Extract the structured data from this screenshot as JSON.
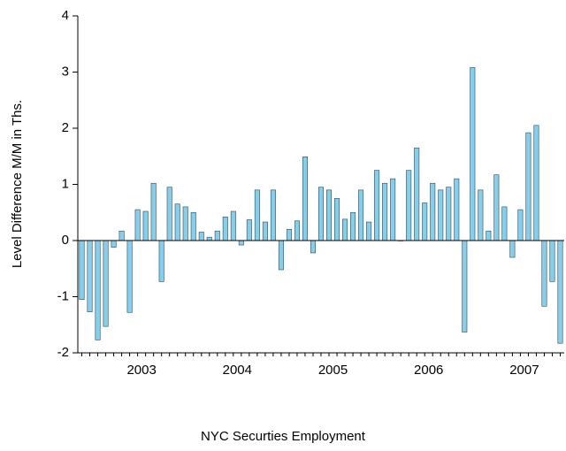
{
  "chart_data": {
    "type": "bar",
    "x_label": "NYC Securties Employment",
    "y_label": "Level Difference M/M in Ths.",
    "categories": [
      null,
      null,
      null,
      null,
      null,
      null,
      null,
      "2003",
      null,
      null,
      null,
      null,
      null,
      null,
      null,
      null,
      null,
      null,
      null,
      "2004",
      null,
      null,
      null,
      null,
      null,
      null,
      null,
      null,
      null,
      null,
      null,
      "2005",
      null,
      null,
      null,
      null,
      null,
      null,
      null,
      null,
      null,
      null,
      null,
      "2006",
      null,
      null,
      null,
      null,
      null,
      null,
      null,
      null,
      null,
      null,
      null,
      "2007",
      null,
      null,
      null,
      null,
      null
    ],
    "values": [
      -1.05,
      -1.27,
      -1.77,
      -1.53,
      -0.12,
      0.17,
      -1.28,
      0.55,
      0.52,
      1.02,
      -0.73,
      0.95,
      0.65,
      0.6,
      0.5,
      0.15,
      0.06,
      0.17,
      0.42,
      0.52,
      -0.08,
      0.37,
      0.9,
      0.33,
      0.9,
      -0.52,
      0.2,
      0.35,
      1.49,
      -0.22,
      0.95,
      0.9,
      0.75,
      0.38,
      0.5,
      0.9,
      0.33,
      1.25,
      1.02,
      1.1,
      0.0,
      1.25,
      1.65,
      0.67,
      1.02,
      0.9,
      0.95,
      1.1,
      -1.63,
      3.08,
      0.9,
      0.17,
      1.17,
      0.6,
      -0.3,
      0.55,
      1.92,
      2.05,
      -1.17,
      -0.73,
      -1.83
    ],
    "color": "#87ceeb",
    "ylim": [
      -2,
      4
    ],
    "yticks": [
      -2,
      -1,
      0,
      1,
      2,
      3,
      4
    ]
  }
}
